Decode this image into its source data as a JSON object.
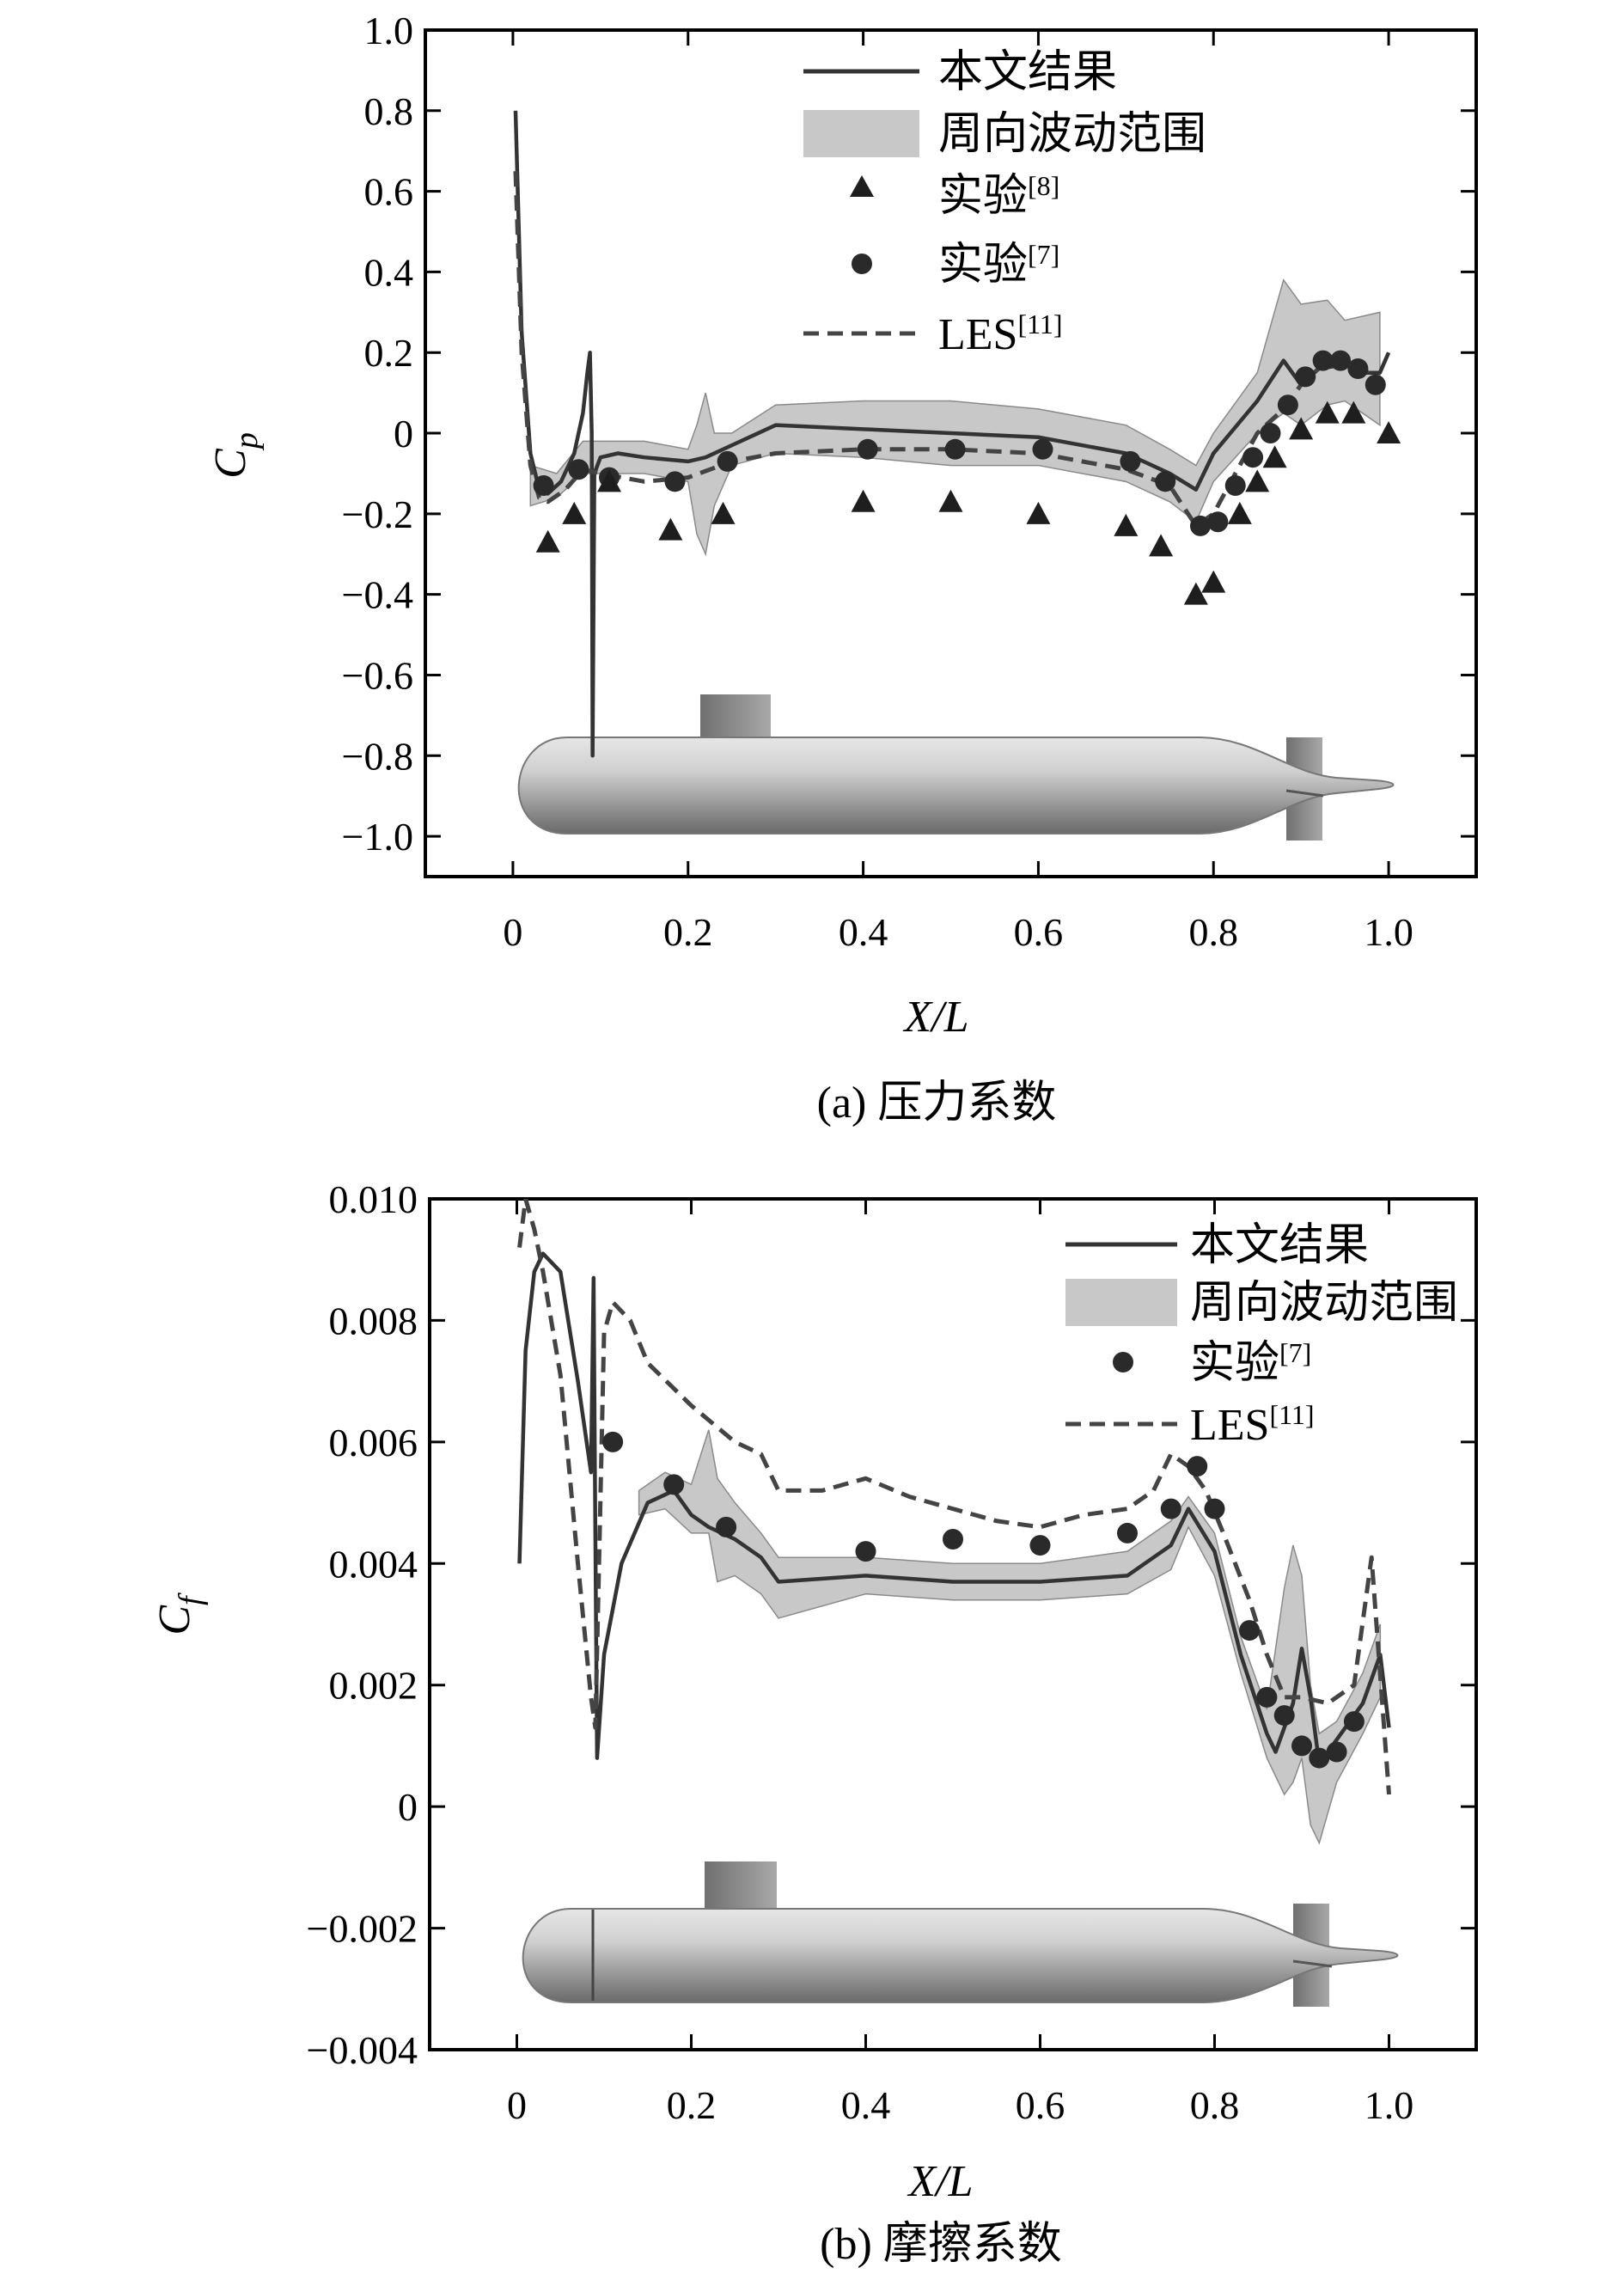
{
  "colors": {
    "band": "#c8c8c8",
    "band_stroke": "#8a8a8a",
    "result_line": "#333333",
    "les_line": "#444444",
    "marker": "#2a2a2a",
    "hull": "#b5b5b5",
    "fin": "#8c8c8c"
  },
  "panels": [
    {
      "caption": "(a) 压力系数",
      "legend": [
        {
          "symbol": "solid-line",
          "label": "本文结果",
          "sup": ""
        },
        {
          "symbol": "band",
          "label": "周向波动范围",
          "sup": ""
        },
        {
          "symbol": "triangle",
          "label": "实验",
          "sup": "[8]"
        },
        {
          "symbol": "circle",
          "label": "实验",
          "sup": "[7]"
        },
        {
          "symbol": "dashed-line",
          "label": "LES",
          "sup": "[11]"
        }
      ]
    },
    {
      "caption": "(b) 摩擦系数",
      "legend": [
        {
          "symbol": "solid-line",
          "label": "本文结果",
          "sup": ""
        },
        {
          "symbol": "band",
          "label": "周向波动范围",
          "sup": ""
        },
        {
          "symbol": "circle",
          "label": "实验",
          "sup": "[7]"
        },
        {
          "symbol": "dashed-line",
          "label": "LES",
          "sup": "[11]"
        }
      ]
    }
  ],
  "chart_data": [
    {
      "type": "line",
      "xlabel": "X/L",
      "ylabel_main": "C",
      "ylabel_sub": "p",
      "xlim": [
        -0.1,
        1.1
      ],
      "ylim": [
        -1.1,
        1.0
      ],
      "xticks": [
        0,
        0.2,
        0.4,
        0.6,
        0.8,
        1.0
      ],
      "xtick_labels": [
        "0",
        "0.2",
        "0.4",
        "0.6",
        "0.8",
        "1.0"
      ],
      "yticks": [
        1.0,
        0.8,
        0.6,
        0.4,
        0.2,
        0,
        -0.2,
        -0.4,
        -0.6,
        -0.8,
        -1.0
      ],
      "ytick_labels": [
        "1.0",
        "0.8",
        "0.6",
        "0.4",
        "0.2",
        "0",
        "−0.2",
        "−0.4",
        "−0.6",
        "−0.8",
        "−1.0"
      ],
      "legend_position": "top-right",
      "series": [
        {
          "name": "本文结果",
          "kind": "line",
          "x": [
            0.003,
            0.01,
            0.02,
            0.03,
            0.04,
            0.055,
            0.07,
            0.08,
            0.085,
            0.088,
            0.09,
            0.091,
            0.093,
            0.1,
            0.12,
            0.15,
            0.2,
            0.22,
            0.25,
            0.28,
            0.3,
            0.4,
            0.5,
            0.6,
            0.7,
            0.75,
            0.78,
            0.8,
            0.85,
            0.88,
            0.9,
            0.92,
            0.95,
            0.97,
            0.99,
            1.0
          ],
          "y": [
            0.8,
            0.25,
            -0.05,
            -0.14,
            -0.15,
            -0.12,
            -0.05,
            0.05,
            0.15,
            0.2,
            0.0,
            -0.8,
            -0.1,
            -0.06,
            -0.05,
            -0.06,
            -0.07,
            -0.06,
            -0.03,
            0.0,
            0.02,
            0.01,
            0.0,
            -0.01,
            -0.05,
            -0.1,
            -0.14,
            -0.05,
            0.08,
            0.18,
            0.12,
            0.16,
            0.17,
            0.15,
            0.15,
            0.2
          ]
        },
        {
          "name": "周向波动范围",
          "kind": "band",
          "x": [
            0.02,
            0.05,
            0.08,
            0.1,
            0.15,
            0.2,
            0.21,
            0.22,
            0.23,
            0.25,
            0.3,
            0.4,
            0.5,
            0.6,
            0.7,
            0.75,
            0.78,
            0.8,
            0.85,
            0.88,
            0.9,
            0.93,
            0.95,
            0.99
          ],
          "upper": [
            -0.08,
            -0.1,
            -0.02,
            -0.02,
            -0.02,
            -0.04,
            0.02,
            0.1,
            0.0,
            0.0,
            0.07,
            0.08,
            0.08,
            0.06,
            0.02,
            -0.04,
            -0.08,
            0.0,
            0.15,
            0.38,
            0.32,
            0.33,
            0.28,
            0.3
          ],
          "lower": [
            -0.18,
            -0.16,
            -0.1,
            -0.1,
            -0.1,
            -0.12,
            -0.25,
            -0.3,
            -0.18,
            -0.08,
            -0.05,
            -0.06,
            -0.08,
            -0.08,
            -0.12,
            -0.17,
            -0.22,
            -0.12,
            0.0,
            0.05,
            0.02,
            0.07,
            0.08,
            0.02
          ]
        },
        {
          "name": "实验[8]",
          "kind": "triangle",
          "x": [
            0.04,
            0.07,
            0.11,
            0.18,
            0.24,
            0.4,
            0.5,
            0.6,
            0.7,
            0.74,
            0.78,
            0.8,
            0.83,
            0.85,
            0.87,
            0.9,
            0.93,
            0.96,
            1.0
          ],
          "y": [
            -0.27,
            -0.2,
            -0.12,
            -0.24,
            -0.2,
            -0.17,
            -0.17,
            -0.2,
            -0.23,
            -0.28,
            -0.4,
            -0.37,
            -0.2,
            -0.12,
            -0.06,
            0.01,
            0.05,
            0.05,
            0.0
          ]
        },
        {
          "name": "实验[7]",
          "kind": "circle",
          "x": [
            0.035,
            0.075,
            0.11,
            0.185,
            0.245,
            0.405,
            0.505,
            0.605,
            0.705,
            0.745,
            0.785,
            0.805,
            0.825,
            0.845,
            0.865,
            0.885,
            0.905,
            0.925,
            0.945,
            0.965,
            0.985
          ],
          "y": [
            -0.13,
            -0.09,
            -0.11,
            -0.12,
            -0.07,
            -0.04,
            -0.04,
            -0.04,
            -0.07,
            -0.12,
            -0.23,
            -0.22,
            -0.13,
            -0.06,
            0.0,
            0.07,
            0.14,
            0.18,
            0.18,
            0.16,
            0.12
          ]
        },
        {
          "name": "LES[11]",
          "kind": "dashed",
          "x": [
            0.003,
            0.01,
            0.02,
            0.03,
            0.04,
            0.06,
            0.08,
            0.1,
            0.15,
            0.2,
            0.25,
            0.3,
            0.4,
            0.5,
            0.6,
            0.7,
            0.75,
            0.78,
            0.8,
            0.83,
            0.85,
            0.88,
            0.9,
            0.92,
            0.95,
            0.97,
            0.99
          ],
          "y": [
            0.65,
            0.2,
            -0.08,
            -0.16,
            -0.17,
            -0.14,
            -0.09,
            -0.1,
            -0.12,
            -0.11,
            -0.07,
            -0.05,
            -0.04,
            -0.04,
            -0.05,
            -0.09,
            -0.13,
            -0.23,
            -0.2,
            -0.08,
            0.0,
            0.06,
            0.12,
            0.16,
            0.19,
            0.17,
            0.1
          ]
        }
      ]
    },
    {
      "type": "line",
      "xlabel": "X/L",
      "ylabel_main": "C",
      "ylabel_sub": "f",
      "xlim": [
        -0.1,
        1.1
      ],
      "ylim": [
        -0.004,
        0.01
      ],
      "xticks": [
        0,
        0.2,
        0.4,
        0.6,
        0.8,
        1.0
      ],
      "xtick_labels": [
        "0",
        "0.2",
        "0.4",
        "0.6",
        "0.8",
        "1.0"
      ],
      "yticks": [
        0.01,
        0.008,
        0.006,
        0.004,
        0.002,
        0,
        -0.002,
        -0.004
      ],
      "ytick_labels": [
        "0.010",
        "0.008",
        "0.006",
        "0.004",
        "0.002",
        "0",
        "−0.002",
        "−0.004"
      ],
      "legend_position": "top-right",
      "series": [
        {
          "name": "本文结果",
          "kind": "line",
          "x": [
            0.003,
            0.01,
            0.02,
            0.03,
            0.05,
            0.07,
            0.085,
            0.088,
            0.09,
            0.092,
            0.1,
            0.12,
            0.15,
            0.18,
            0.2,
            0.22,
            0.25,
            0.28,
            0.3,
            0.4,
            0.5,
            0.6,
            0.7,
            0.75,
            0.77,
            0.8,
            0.83,
            0.86,
            0.87,
            0.89,
            0.9,
            0.91,
            0.92,
            0.94,
            0.97,
            0.99,
            1.0
          ],
          "y": [
            0.004,
            0.0075,
            0.0088,
            0.0091,
            0.0088,
            0.007,
            0.0055,
            0.0087,
            0.0045,
            0.0008,
            0.0025,
            0.004,
            0.005,
            0.0052,
            0.0048,
            0.0046,
            0.0044,
            0.0041,
            0.0037,
            0.0038,
            0.0037,
            0.0037,
            0.0038,
            0.0043,
            0.0049,
            0.0042,
            0.0025,
            0.0012,
            0.0009,
            0.0017,
            0.0026,
            0.0018,
            0.0007,
            0.0011,
            0.0017,
            0.0025,
            0.0013
          ]
        },
        {
          "name": "周向波动范围",
          "kind": "band",
          "x": [
            0.14,
            0.17,
            0.2,
            0.22,
            0.23,
            0.25,
            0.28,
            0.3,
            0.4,
            0.5,
            0.6,
            0.7,
            0.75,
            0.77,
            0.8,
            0.83,
            0.86,
            0.88,
            0.89,
            0.9,
            0.91,
            0.92,
            0.94,
            0.97,
            0.99
          ],
          "upper": [
            0.0052,
            0.0055,
            0.0053,
            0.0062,
            0.0054,
            0.005,
            0.0045,
            0.0041,
            0.0041,
            0.004,
            0.004,
            0.0042,
            0.0047,
            0.0051,
            0.0045,
            0.0028,
            0.0016,
            0.0036,
            0.0043,
            0.0038,
            0.002,
            0.0012,
            0.0014,
            0.0022,
            0.003
          ],
          "lower": [
            0.0048,
            0.0049,
            0.0045,
            0.0045,
            0.0037,
            0.0038,
            0.0035,
            0.0031,
            0.0035,
            0.0034,
            0.0034,
            0.0035,
            0.0039,
            0.0046,
            0.0038,
            0.0022,
            0.0008,
            0.0002,
            0.0004,
            0.0008,
            -0.0003,
            -0.0006,
            0.0004,
            0.0012,
            0.0018
          ]
        },
        {
          "name": "实验[7]",
          "kind": "circle",
          "x": [
            0.11,
            0.18,
            0.24,
            0.4,
            0.5,
            0.6,
            0.7,
            0.75,
            0.78,
            0.8,
            0.84,
            0.86,
            0.88,
            0.9,
            0.92,
            0.94,
            0.96
          ],
          "y": [
            0.006,
            0.0053,
            0.0046,
            0.0042,
            0.0044,
            0.0043,
            0.0045,
            0.0049,
            0.0056,
            0.0049,
            0.0029,
            0.0018,
            0.0015,
            0.001,
            0.0008,
            0.0009,
            0.0014
          ]
        },
        {
          "name": "LES[11]",
          "kind": "dashed",
          "x": [
            0.003,
            0.01,
            0.02,
            0.03,
            0.05,
            0.07,
            0.085,
            0.09,
            0.095,
            0.1,
            0.11,
            0.13,
            0.15,
            0.2,
            0.25,
            0.28,
            0.3,
            0.35,
            0.4,
            0.45,
            0.5,
            0.55,
            0.6,
            0.65,
            0.7,
            0.73,
            0.75,
            0.77,
            0.79,
            0.81,
            0.84,
            0.86,
            0.88,
            0.9,
            0.93,
            0.96,
            0.98,
            1.0
          ],
          "y": [
            0.0092,
            0.01,
            0.0095,
            0.0088,
            0.0071,
            0.004,
            0.0018,
            0.0013,
            0.0045,
            0.0078,
            0.0083,
            0.008,
            0.0073,
            0.0066,
            0.006,
            0.0058,
            0.0052,
            0.0052,
            0.0054,
            0.0051,
            0.0049,
            0.0047,
            0.0046,
            0.0048,
            0.0049,
            0.0052,
            0.0058,
            0.0056,
            0.0052,
            0.0045,
            0.0034,
            0.0025,
            0.0018,
            0.0018,
            0.0017,
            0.002,
            0.0041,
            0.0002
          ]
        }
      ]
    }
  ]
}
